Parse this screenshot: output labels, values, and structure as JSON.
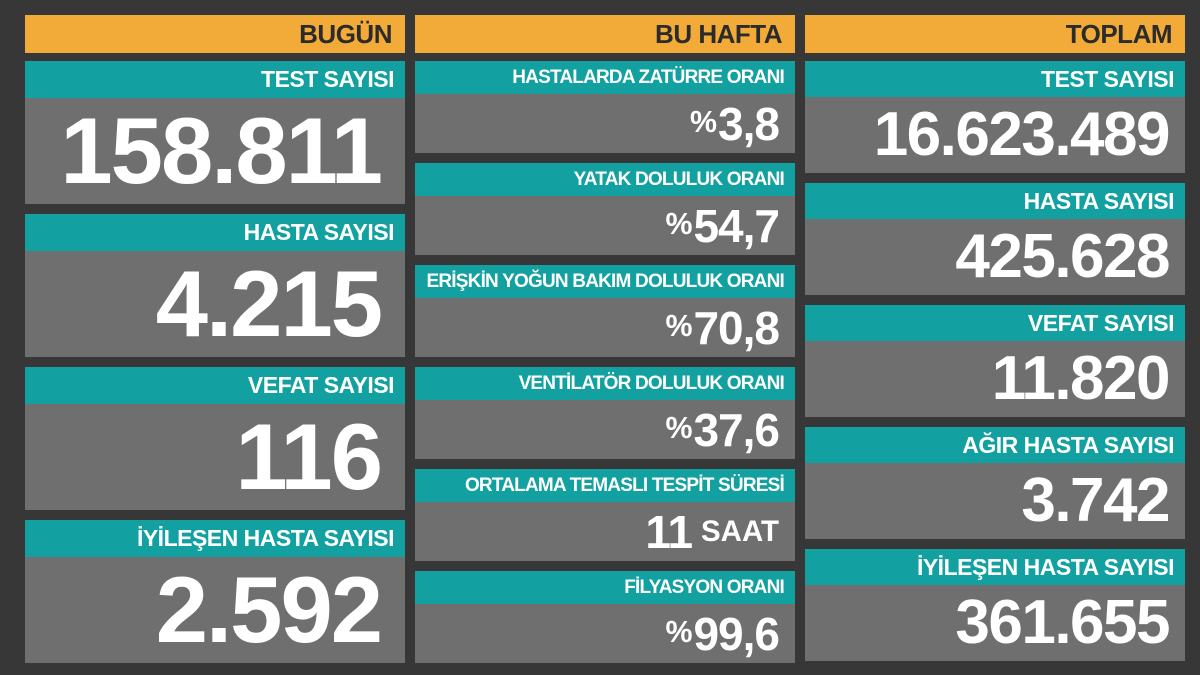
{
  "board": {
    "columns": [
      {
        "header": "BUGÜN",
        "blocks": [
          {
            "label": "TEST SAYISI",
            "value": "158.811"
          },
          {
            "label": "HASTA SAYISI",
            "value": "4.215"
          },
          {
            "label": "VEFAT SAYISI",
            "value": "116"
          },
          {
            "label": "İYİLEŞEN HASTA SAYISI",
            "value": "2.592"
          }
        ]
      },
      {
        "header": "BU HAFTA",
        "blocks": [
          {
            "label": "HASTALARDA ZATÜRRE ORANI",
            "prefix": "%",
            "value": "3,8",
            "suffix": ""
          },
          {
            "label": "YATAK DOLULUK ORANI",
            "prefix": "%",
            "value": "54,7",
            "suffix": ""
          },
          {
            "label": "ERİŞKİN YOĞUN BAKIM DOLULUK ORANI",
            "prefix": "%",
            "value": "70,8",
            "suffix": ""
          },
          {
            "label": "VENTİLATÖR DOLULUK ORANI",
            "prefix": "%",
            "value": "37,6",
            "suffix": ""
          },
          {
            "label": "ORTALAMA TEMASLI TESPİT SÜRESİ",
            "prefix": "",
            "value": "11",
            "suffix": "SAAT"
          },
          {
            "label": "FİLYASYON ORANI",
            "prefix": "%",
            "value": "99,6",
            "suffix": ""
          }
        ]
      },
      {
        "header": "TOPLAM",
        "blocks": [
          {
            "label": "TEST SAYISI",
            "value": "16.623.489"
          },
          {
            "label": "HASTA SAYISI",
            "value": "425.628"
          },
          {
            "label": "VEFAT SAYISI",
            "value": "11.820"
          },
          {
            "label": "AĞIR HASTA SAYISI",
            "value": "3.742"
          },
          {
            "label": "İYİLEŞEN HASTA SAYISI",
            "value": "361.655"
          }
        ]
      }
    ]
  },
  "colors": {
    "background": "#373737",
    "header_bg": "#F2AB38",
    "header_text": "#2B2B2B",
    "label_bg": "#12A0A0",
    "panel_bg": "#6F6F6F",
    "text": "#FFFFFF"
  },
  "chart_data": {
    "type": "table",
    "groups": [
      {
        "name": "BUGÜN",
        "rows": [
          {
            "label": "TEST SAYISI",
            "value": 158811,
            "unit": ""
          },
          {
            "label": "HASTA SAYISI",
            "value": 4215,
            "unit": ""
          },
          {
            "label": "VEFAT SAYISI",
            "value": 116,
            "unit": ""
          },
          {
            "label": "İYİLEŞEN HASTA SAYISI",
            "value": 2592,
            "unit": ""
          }
        ]
      },
      {
        "name": "BU HAFTA",
        "rows": [
          {
            "label": "HASTALARDA ZATÜRRE ORANI",
            "value": 3.8,
            "unit": "%"
          },
          {
            "label": "YATAK DOLULUK ORANI",
            "value": 54.7,
            "unit": "%"
          },
          {
            "label": "ERİŞKİN YOĞUN BAKIM DOLULUK ORANI",
            "value": 70.8,
            "unit": "%"
          },
          {
            "label": "VENTİLATÖR DOLULUK ORANI",
            "value": 37.6,
            "unit": "%"
          },
          {
            "label": "ORTALAMA TEMASLI TESPİT SÜRESİ",
            "value": 11,
            "unit": "SAAT"
          },
          {
            "label": "FİLYASYON ORANI",
            "value": 99.6,
            "unit": "%"
          }
        ]
      },
      {
        "name": "TOPLAM",
        "rows": [
          {
            "label": "TEST SAYISI",
            "value": 16623489,
            "unit": ""
          },
          {
            "label": "HASTA SAYISI",
            "value": 425628,
            "unit": ""
          },
          {
            "label": "VEFAT SAYISI",
            "value": 11820,
            "unit": ""
          },
          {
            "label": "AĞIR HASTA SAYISI",
            "value": 3742,
            "unit": ""
          },
          {
            "label": "İYİLEŞEN HASTA SAYISI",
            "value": 361655,
            "unit": ""
          }
        ]
      }
    ]
  }
}
